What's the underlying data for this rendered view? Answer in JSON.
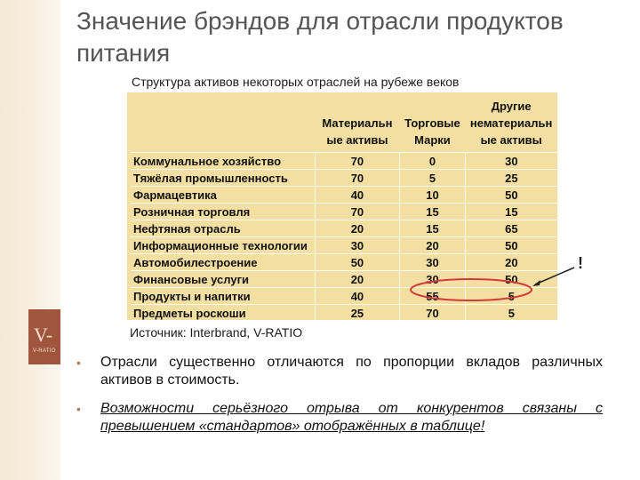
{
  "slide": {
    "title": "Значение брэндов для отрасли продуктов питания",
    "subtitle": "Структура активов некоторых отраслей на рубеже веков",
    "source": "Источник: Interbrand, V-RATIO",
    "exclaim": "!",
    "logo_text_big": "V-",
    "logo_text_small": "V-RATIO"
  },
  "table": {
    "headers": [
      "",
      "Материальн ые активы",
      "Торговые Марки",
      "Другие нематериальн ые активы"
    ],
    "rows": [
      {
        "label": "Коммунальное хозяйство",
        "values": [
          "70",
          "0",
          "30"
        ]
      },
      {
        "label": "Тяжёлая промышленность",
        "values": [
          "70",
          "5",
          "25"
        ]
      },
      {
        "label": "Фармацевтика",
        "values": [
          "40",
          "10",
          "50"
        ]
      },
      {
        "label": "Розничная торговля",
        "values": [
          "70",
          "15",
          "15"
        ]
      },
      {
        "label": "Нефтяная отрасль",
        "values": [
          "20",
          "15",
          "65"
        ]
      },
      {
        "label": "Информационные технологии",
        "values": [
          "30",
          "20",
          "50"
        ]
      },
      {
        "label": "Автомобилестроение",
        "values": [
          "50",
          "30",
          "20"
        ]
      },
      {
        "label": "Финансовые услуги",
        "values": [
          "20",
          "30",
          "50"
        ]
      },
      {
        "label": "Продукты и напитки",
        "values": [
          "40",
          "55",
          "5"
        ]
      },
      {
        "label": "Предметы роскоши",
        "values": [
          "25",
          "70",
          "5"
        ]
      }
    ]
  },
  "bullets": [
    "Отрасли существенно отличаются по пропорции вкладов различных активов в стоимость.",
    "Возможности серьёзного отрыва от конкурентов связаны с превышением «стандартов» отображённых в таблице!"
  ],
  "colors": {
    "table_bg": "#f3dfa1",
    "highlight_ellipse": "#d23a3a",
    "bullet_marker": "#b07a5a"
  }
}
